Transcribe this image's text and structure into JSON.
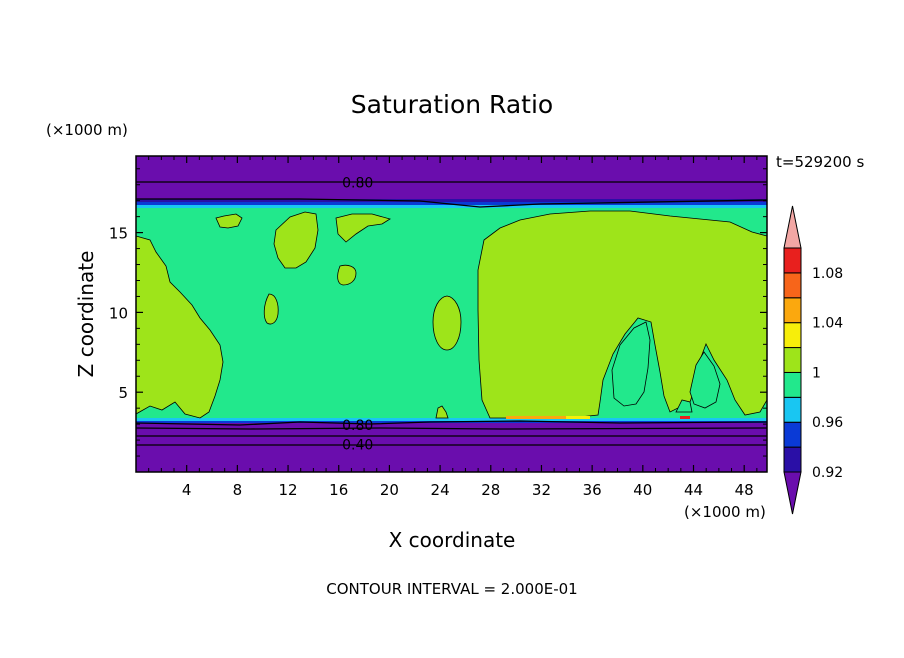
{
  "chart_data": {
    "type": "heatmap",
    "title": "Saturation Ratio",
    "xlabel": "X coordinate",
    "ylabel": "Z coordinate",
    "x_unit_label": "(×1000 m)",
    "y_unit_label": "(×1000 m)",
    "time_label": "t=529200 s",
    "footer": "CONTOUR INTERVAL = 2.000E-01",
    "xlim": [
      0,
      49.8
    ],
    "ylim": [
      0,
      19.8
    ],
    "x_ticks": [
      4,
      8,
      12,
      16,
      20,
      24,
      28,
      32,
      36,
      40,
      44,
      48
    ],
    "x_tick_labels": [
      "4",
      "8",
      "12",
      "16",
      "20",
      "24",
      "28",
      "32",
      "36",
      "40",
      "44",
      "48"
    ],
    "y_ticks": [
      5,
      10,
      15
    ],
    "y_tick_labels": [
      "5",
      "10",
      "15"
    ],
    "colorbar": {
      "levels": [
        0.92,
        0.94,
        0.96,
        0.98,
        1.0,
        1.02,
        1.04,
        1.06,
        1.08,
        1.1
      ],
      "colors": [
        "#6a0dad",
        "#2a0fa6",
        "#0a3ad6",
        "#19c6f2",
        "#22e88c",
        "#9ee41a",
        "#f7ee0a",
        "#fba80e",
        "#f7651a",
        "#e8201e",
        "#f3a7a4"
      ],
      "tick_labels": [
        "0.92",
        "0.96",
        "1",
        "1.04",
        "1.08"
      ],
      "tick_values": [
        0.92,
        0.96,
        1.0,
        1.04,
        1.08
      ]
    },
    "contour_labels": [
      {
        "text": "0.80",
        "x": 17.5,
        "z": 18.2
      },
      {
        "text": "0.80",
        "x": 17.5,
        "z": 3.0
      },
      {
        "text": "0.40",
        "x": 17.5,
        "z": 1.8
      }
    ]
  }
}
